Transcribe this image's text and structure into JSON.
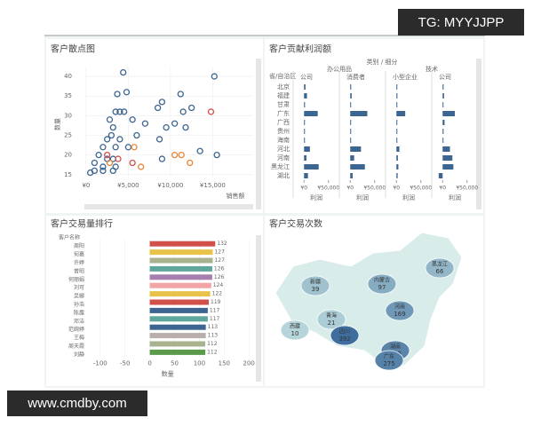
{
  "watermarks": {
    "top": "TG: MYYJJPP",
    "bottom": "www.cmdby.com"
  },
  "chart_data": [
    {
      "type": "scatter",
      "title": "客户散点图",
      "x_label": "销售额",
      "y_label": "数量",
      "xlim": [
        -200,
        19800
      ],
      "ylim": [
        14.5,
        42.5
      ],
      "xticks": [
        {
          "value": 0,
          "label": "¥0"
        },
        {
          "value": 5000,
          "label": "¥5,000"
        },
        {
          "value": 10000,
          "label": "¥10,000"
        },
        {
          "value": 15000,
          "label": "¥15,000"
        }
      ],
      "yticks": [
        15,
        20,
        25,
        30,
        35,
        40
      ],
      "grid": true,
      "series": [
        {
          "color": "#3d6591",
          "x": [
            4400,
            15200,
            3700,
            11200,
            4800,
            9000,
            8500,
            3500,
            4000,
            4500,
            11500,
            12500,
            5500,
            7000,
            2800,
            3200,
            9500,
            10500,
            11800,
            3000,
            4000,
            2500,
            6000,
            8700,
            2000,
            3500,
            5000,
            1500,
            2500,
            3200,
            1000,
            2000,
            3500,
            1000,
            2000,
            3200,
            500,
            9000,
            13500,
            15500
          ],
          "values": [
            41,
            40,
            35.5,
            35.5,
            36,
            33.5,
            32,
            31,
            31,
            31,
            31,
            32,
            29,
            28,
            29,
            27,
            27,
            28,
            27,
            25,
            24,
            24,
            25,
            24,
            22,
            22,
            22,
            20,
            19,
            19,
            18,
            17,
            17,
            16,
            16,
            16,
            15.5,
            19,
            21,
            20
          ]
        },
        {
          "color": "#e8873a",
          "x": [
            2800,
            5700,
            10500,
            11300,
            12300,
            6500
          ],
          "values": [
            18,
            22,
            20,
            20,
            18,
            17
          ]
        },
        {
          "color": "#d1504a",
          "x": [
            14800,
            3800,
            2500,
            5500
          ],
          "values": [
            31,
            19,
            20,
            18
          ]
        }
      ]
    },
    {
      "type": "bar-multiples",
      "title": "客户贡献利润额",
      "header": "类别 / 细分",
      "row_header": "省/自治区",
      "groups": [
        "办公用品",
        "技术"
      ],
      "regions": [
        "北京",
        "福建",
        "甘肃",
        "广东",
        "广西",
        "贵州",
        "海南",
        "河北",
        "河南",
        "黑龙江",
        "湖北"
      ],
      "color": "#3d6591",
      "x_label": "利润",
      "xlim": [
        -15000,
        65000
      ],
      "xticks": [
        {
          "value": 0,
          "label": "¥0"
        },
        {
          "value": 50000,
          "label": "¥50,000"
        }
      ],
      "panels": [
        {
          "name": "公司",
          "values": [
            3000,
            6000,
            2000,
            28000,
            1000,
            1500,
            500,
            12000,
            5000,
            30000,
            8000
          ]
        },
        {
          "name": "消费者",
          "values": [
            2000,
            3000,
            1000,
            35000,
            1500,
            1000,
            800,
            22000,
            8000,
            30000,
            5000
          ]
        },
        {
          "name": "小型企业",
          "values": [
            1000,
            2000,
            500,
            18000,
            1200,
            800,
            500,
            6000,
            3000,
            4000,
            2500
          ]
        },
        {
          "name": "公司",
          "values": [
            2000,
            3000,
            1000,
            25000,
            4000,
            2000,
            1500,
            15000,
            20000,
            22000,
            -8000
          ]
        }
      ]
    },
    {
      "type": "hbar",
      "title": "客户交易量排行",
      "row_header": "客户名称",
      "x_label": "数量",
      "xlim": [
        -105,
        205
      ],
      "xticks": [
        -100,
        -50,
        0,
        50,
        100,
        150,
        200
      ],
      "categories": [
        "周阳",
        "何嘉",
        "许婷",
        "曾昭",
        "何丽娟",
        "刘可",
        "吴娜",
        "孙浩",
        "陈露",
        "邓洁",
        "范婉婷",
        "王梅",
        "周天霞",
        "刘静"
      ],
      "values": [
        132,
        127,
        127,
        126,
        126,
        124,
        122,
        119,
        117,
        117,
        113,
        113,
        112,
        112
      ],
      "colors": [
        "#d1504a",
        "#e9c24a",
        "#a9b28f",
        "#5fa79c",
        "#a77fae",
        "#f2a4a6",
        "#e9c24a",
        "#d1504a",
        "#3d6591",
        "#5fa79c",
        "#3d6591",
        "#b8aeab",
        "#a9b28f",
        "#5a9a4a"
      ]
    },
    {
      "type": "map",
      "title": "客户交易次数",
      "regions": [
        {
          "name": "新疆",
          "value": 39
        },
        {
          "name": "西藏",
          "value": 10
        },
        {
          "name": "青海",
          "value": 21
        },
        {
          "name": "内蒙古",
          "value": 97
        },
        {
          "name": "黑龙江",
          "value": 66
        },
        {
          "name": "河南",
          "value": 169
        },
        {
          "name": "四川",
          "value": 392
        },
        {
          "name": "湖南",
          "value": 259
        },
        {
          "name": "广东",
          "value": 275
        }
      ]
    }
  ]
}
